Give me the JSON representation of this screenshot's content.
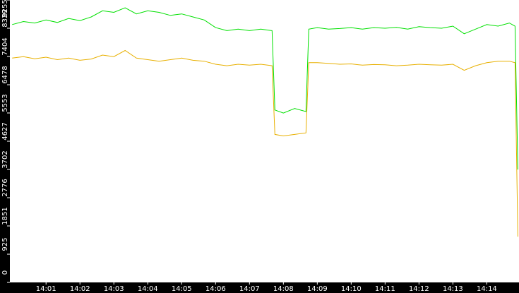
{
  "chart_data": {
    "type": "line",
    "x": [
      "14:00:00",
      "14:00:20",
      "14:00:40",
      "14:01:00",
      "14:01:20",
      "14:01:40",
      "14:02:00",
      "14:02:20",
      "14:02:40",
      "14:03:00",
      "14:03:20",
      "14:03:40",
      "14:04:00",
      "14:04:20",
      "14:04:40",
      "14:05:00",
      "14:05:20",
      "14:05:40",
      "14:06:00",
      "14:06:20",
      "14:06:40",
      "14:07:00",
      "14:07:20",
      "14:07:40",
      "14:07:45",
      "14:08:00",
      "14:08:20",
      "14:08:40",
      "14:08:45",
      "14:09:00",
      "14:09:20",
      "14:09:40",
      "14:10:00",
      "14:10:20",
      "14:10:40",
      "14:11:00",
      "14:11:20",
      "14:11:40",
      "14:12:00",
      "14:12:20",
      "14:12:40",
      "14:13:00",
      "14:13:20",
      "14:13:40",
      "14:14:00",
      "14:14:20",
      "14:14:40",
      "14:14:50",
      "14:14:55"
    ],
    "series": [
      {
        "color": "#00e000",
        "values": [
          8450,
          8550,
          8500,
          8600,
          8520,
          8650,
          8580,
          8700,
          8900,
          8850,
          9000,
          8800,
          8900,
          8850,
          8750,
          8800,
          8700,
          8600,
          8350,
          8250,
          8300,
          8250,
          8300,
          8250,
          5650,
          5550,
          5700,
          5600,
          8300,
          8350,
          8300,
          8320,
          8350,
          8300,
          8350,
          8330,
          8360,
          8300,
          8380,
          8350,
          8330,
          8400,
          8150,
          8300,
          8450,
          8400,
          8500,
          8400,
          3700
        ]
      },
      {
        "color": "#e8b000",
        "values": [
          7350,
          7400,
          7330,
          7380,
          7300,
          7350,
          7280,
          7320,
          7450,
          7400,
          7600,
          7350,
          7300,
          7250,
          7300,
          7350,
          7280,
          7250,
          7150,
          7100,
          7150,
          7120,
          7150,
          7100,
          4850,
          4800,
          4850,
          4900,
          7200,
          7200,
          7180,
          7150,
          7160,
          7120,
          7140,
          7130,
          7100,
          7120,
          7150,
          7130,
          7120,
          7150,
          6950,
          7100,
          7200,
          7250,
          7250,
          7200,
          1500
        ]
      }
    ],
    "xlim": [
      "13:59:56",
      "14:14:57"
    ],
    "xticks": [
      "14:01",
      "14:02",
      "14:03",
      "14:04",
      "14:05",
      "14:06",
      "14:07",
      "14:08",
      "14:09",
      "14:10",
      "14:11",
      "14:12",
      "14:13",
      "14:14"
    ],
    "ylim": [
      0,
      9255
    ],
    "yticks": [
      0,
      925,
      1851,
      2776,
      3702,
      4627,
      5553,
      6478,
      7404,
      8329,
      9255
    ]
  }
}
